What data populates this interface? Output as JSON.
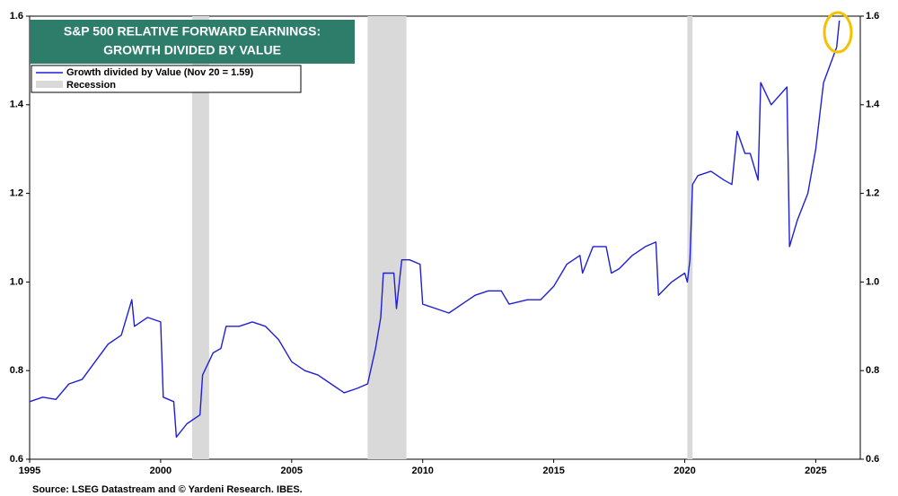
{
  "chart_data": {
    "type": "line",
    "title": [
      "S&P 500 RELATIVE FORWARD EARNINGS:",
      "GROWTH DIVIDED BY VALUE"
    ],
    "source": "Source: LSEG Datastream and © Yardeni Research. IBES.",
    "x": [
      1995.0,
      1995.5,
      1996.0,
      1996.5,
      1997.0,
      1997.5,
      1998.0,
      1998.5,
      1998.9,
      1999.0,
      1999.5,
      2000.0,
      2000.1,
      2000.5,
      2000.6,
      2001.0,
      2001.5,
      2001.6,
      2002.0,
      2002.3,
      2002.5,
      2003.0,
      2003.5,
      2004.0,
      2004.5,
      2005.0,
      2005.5,
      2006.0,
      2006.5,
      2007.0,
      2007.5,
      2007.9,
      2008.2,
      2008.4,
      2008.5,
      2008.9,
      2009.0,
      2009.2,
      2009.5,
      2009.9,
      2010.0,
      2010.5,
      2011.0,
      2011.5,
      2012.0,
      2012.5,
      2013.0,
      2013.3,
      2014.0,
      2014.5,
      2015.0,
      2015.3,
      2015.5,
      2016.0,
      2016.1,
      2016.5,
      2017.0,
      2017.2,
      2017.5,
      2018.0,
      2018.5,
      2018.9,
      2019.0,
      2019.5,
      2020.0,
      2020.1,
      2020.2,
      2020.3,
      2020.5,
      2021.0,
      2021.5,
      2021.8,
      2022.0,
      2022.3,
      2022.5,
      2022.8,
      2022.9,
      2023.3,
      2023.9,
      2024.0,
      2024.3,
      2024.7,
      2025.0,
      2025.3,
      2025.8,
      2025.9
    ],
    "series": [
      {
        "name": "Growth divided by Value (Nov 20 = 1.59)",
        "color": "#1f1fd6",
        "values": [
          0.73,
          0.74,
          0.735,
          0.77,
          0.78,
          0.82,
          0.86,
          0.88,
          0.96,
          0.9,
          0.92,
          0.91,
          0.74,
          0.73,
          0.65,
          0.68,
          0.7,
          0.79,
          0.84,
          0.85,
          0.9,
          0.9,
          0.91,
          0.9,
          0.87,
          0.82,
          0.8,
          0.79,
          0.77,
          0.75,
          0.76,
          0.77,
          0.85,
          0.92,
          1.02,
          1.02,
          0.94,
          1.05,
          1.05,
          1.04,
          0.95,
          0.94,
          0.93,
          0.95,
          0.97,
          0.98,
          0.98,
          0.95,
          0.96,
          0.96,
          0.99,
          1.02,
          1.04,
          1.06,
          1.02,
          1.08,
          1.08,
          1.02,
          1.03,
          1.06,
          1.08,
          1.09,
          0.97,
          1.0,
          1.02,
          1.0,
          1.05,
          1.22,
          1.24,
          1.25,
          1.23,
          1.22,
          1.34,
          1.29,
          1.29,
          1.23,
          1.45,
          1.4,
          1.44,
          1.08,
          1.14,
          1.2,
          1.3,
          1.45,
          1.53,
          1.59
        ]
      }
    ],
    "bands": {
      "name": "Recession",
      "color": "#d9d9d9",
      "ranges": [
        [
          2001.2,
          2001.85
        ],
        [
          2007.9,
          2009.38
        ],
        [
          2020.1,
          2020.3
        ]
      ]
    },
    "xlim": [
      1995,
      2026.7
    ],
    "xticks": [
      1995,
      2000,
      2005,
      2010,
      2015,
      2020,
      2025
    ],
    "ylim": [
      0.6,
      1.6
    ],
    "yticks": [
      0.6,
      0.8,
      {
        "value": 1,
        "label": "1.0"
      },
      1.2,
      1.4,
      1.6
    ]
  }
}
